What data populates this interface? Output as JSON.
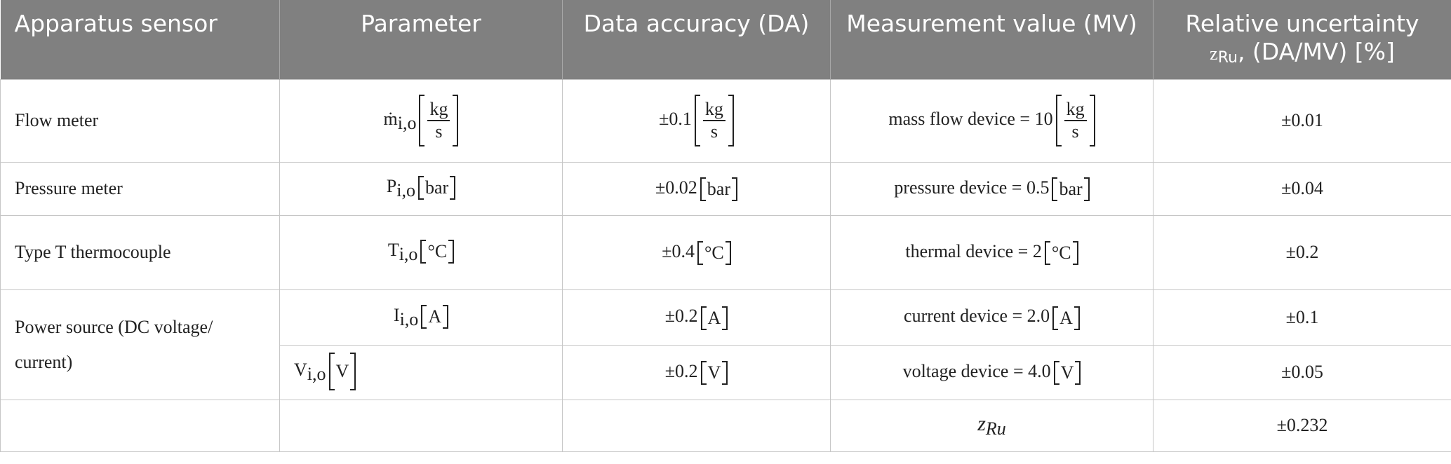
{
  "table": {
    "header": [
      "Apparatus sensor",
      "Parameter",
      "Data accuracy (DA)",
      "Measurement value (MV)",
      {
        "text": "Relative uncertainty",
        "symbol": "z",
        "sub": "Ru",
        "rest": ", (DA/MV) [%]"
      }
    ],
    "rows": [
      {
        "sensor": "Flow meter",
        "parameter": {
          "symbol": "ṁ",
          "sub": "i,o",
          "num": "kg",
          "den": "s"
        },
        "accuracy": {
          "text": "±0.1",
          "num": "kg",
          "den": "s"
        },
        "measurement": {
          "text": "mass flow device = 10",
          "num": "kg",
          "den": "s"
        },
        "uncertainty": "±0.01"
      },
      {
        "sensor": "Pressure meter",
        "parameter": {
          "symbol": "P",
          "sub": "i,o",
          "unit": "bar"
        },
        "accuracy": {
          "text": "±0.02",
          "unit": "bar"
        },
        "measurement": {
          "text": "pressure device = 0.5",
          "unit": "bar"
        },
        "uncertainty": "±0.04"
      },
      {
        "sensor": "Type T thermocouple",
        "parameter": {
          "symbol": "T",
          "sub": "i,o",
          "unit": "°C"
        },
        "accuracy": {
          "text": "±0.4",
          "unit": "°C"
        },
        "measurement": {
          "text": "thermal device = 2",
          "unit": "°C"
        },
        "uncertainty": "±0.2"
      },
      {
        "sensor": "Power source (DC voltage/ current)",
        "parameter": {
          "symbol": "I",
          "sub": "i,o",
          "unit": "A"
        },
        "accuracy": {
          "text": "±0.2",
          "unit": "A"
        },
        "measurement": {
          "text": "current device = 2.0",
          "unit": "A"
        },
        "uncertainty": "±0.1"
      },
      {
        "parameter": {
          "symbol": "V",
          "sub": "i,o",
          "unit": "V"
        },
        "accuracy": {
          "text": "±0.2",
          "unit": "V"
        },
        "measurement": {
          "text": "voltage device = 4.0",
          "unit": "V"
        },
        "uncertainty": "±0.05"
      },
      {
        "measurement": {
          "symbol": "z",
          "sub": "Ru"
        },
        "uncertainty": "±0.232"
      }
    ]
  }
}
